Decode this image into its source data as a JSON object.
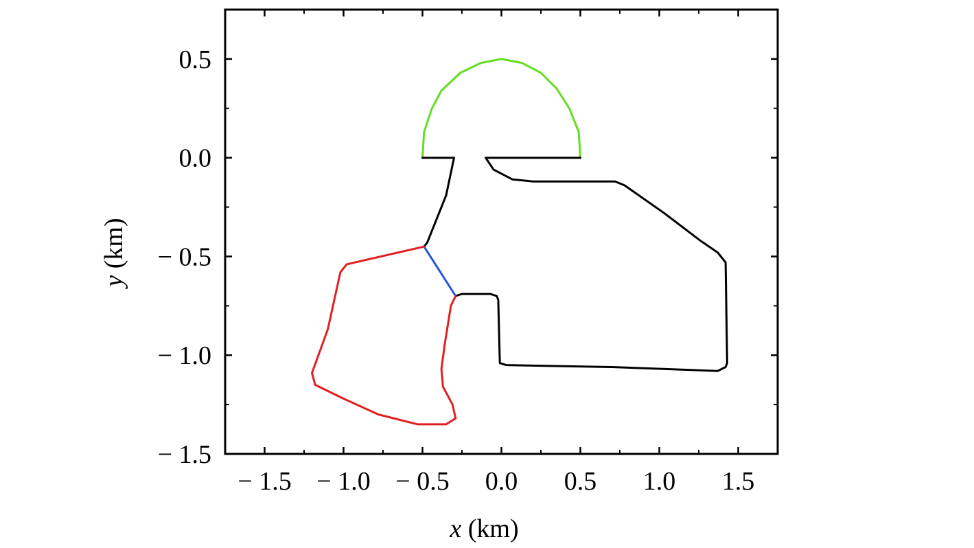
{
  "chart_data": {
    "type": "line",
    "xlabel_var": "x",
    "xlabel_unit": " (km)",
    "ylabel_var": "y",
    "ylabel_unit": " (km)",
    "xlim": [
      -1.75,
      1.75
    ],
    "ylim": [
      -1.5,
      0.75
    ],
    "x_ticks": [
      -1.5,
      -1.0,
      -0.5,
      0.0,
      0.5,
      1.0,
      1.5
    ],
    "x_tick_labels": [
      "− 1.5",
      "− 1.0",
      "− 0.5",
      "0.0",
      "0.5",
      "1.0",
      "1.5"
    ],
    "y_ticks": [
      0.5,
      0.0,
      -0.5,
      -1.0,
      -1.5
    ],
    "y_tick_labels": [
      "0.5",
      "0.0",
      "− 0.5",
      "− 1.0",
      "− 1.5"
    ],
    "x_minor_ticks": [
      -1.25,
      -0.75,
      -0.25,
      0.25,
      0.75,
      1.25
    ],
    "y_minor_ticks": [
      0.25,
      -0.25,
      -0.75,
      -1.25
    ],
    "grid": false,
    "series": [
      {
        "color": "#66dd22",
        "points": [
          [
            -0.5,
            0.0
          ],
          [
            -0.49,
            0.13
          ],
          [
            -0.44,
            0.25
          ],
          [
            -0.38,
            0.34
          ],
          [
            -0.26,
            0.43
          ],
          [
            -0.13,
            0.48
          ],
          [
            0.0,
            0.5
          ],
          [
            0.13,
            0.48
          ],
          [
            0.25,
            0.43
          ],
          [
            0.35,
            0.35
          ],
          [
            0.43,
            0.25
          ],
          [
            0.49,
            0.13
          ],
          [
            0.5,
            0.0
          ]
        ]
      },
      {
        "color": "#000000",
        "points": [
          [
            -0.5,
            0.0
          ],
          [
            -0.3,
            0.0
          ],
          [
            -0.35,
            -0.19
          ],
          [
            -0.47,
            -0.43
          ],
          [
            -0.49,
            -0.45
          ]
        ]
      },
      {
        "color": "#000000",
        "points": [
          [
            0.5,
            0.0
          ],
          [
            -0.1,
            0.0
          ],
          [
            -0.05,
            -0.06
          ],
          [
            0.07,
            -0.11
          ],
          [
            0.2,
            -0.12
          ],
          [
            0.72,
            -0.12
          ],
          [
            0.78,
            -0.14
          ],
          [
            1.03,
            -0.28
          ],
          [
            1.26,
            -0.42
          ],
          [
            1.37,
            -0.48
          ],
          [
            1.42,
            -0.53
          ],
          [
            1.43,
            -1.04
          ],
          [
            1.42,
            -1.06
          ],
          [
            1.37,
            -1.08
          ],
          [
            0.7,
            -1.06
          ],
          [
            0.03,
            -1.05
          ],
          [
            -0.01,
            -1.04
          ],
          [
            -0.02,
            -0.72
          ],
          [
            -0.03,
            -0.7
          ],
          [
            -0.07,
            -0.69
          ],
          [
            -0.25,
            -0.69
          ],
          [
            -0.29,
            -0.7
          ]
        ]
      },
      {
        "color": "#2255dd",
        "points": [
          [
            -0.49,
            -0.45
          ],
          [
            -0.29,
            -0.7
          ]
        ]
      },
      {
        "color": "#e02020",
        "points": [
          [
            -0.49,
            -0.45
          ],
          [
            -0.98,
            -0.54
          ],
          [
            -1.02,
            -0.58
          ],
          [
            -1.1,
            -0.87
          ],
          [
            -1.2,
            -1.09
          ],
          [
            -1.18,
            -1.15
          ],
          [
            -1.0,
            -1.22
          ],
          [
            -0.78,
            -1.3
          ],
          [
            -0.53,
            -1.35
          ],
          [
            -0.35,
            -1.35
          ],
          [
            -0.29,
            -1.32
          ],
          [
            -0.31,
            -1.25
          ],
          [
            -0.37,
            -1.16
          ],
          [
            -0.38,
            -1.07
          ],
          [
            -0.36,
            -0.95
          ],
          [
            -0.32,
            -0.75
          ],
          [
            -0.29,
            -0.7
          ]
        ]
      }
    ]
  }
}
